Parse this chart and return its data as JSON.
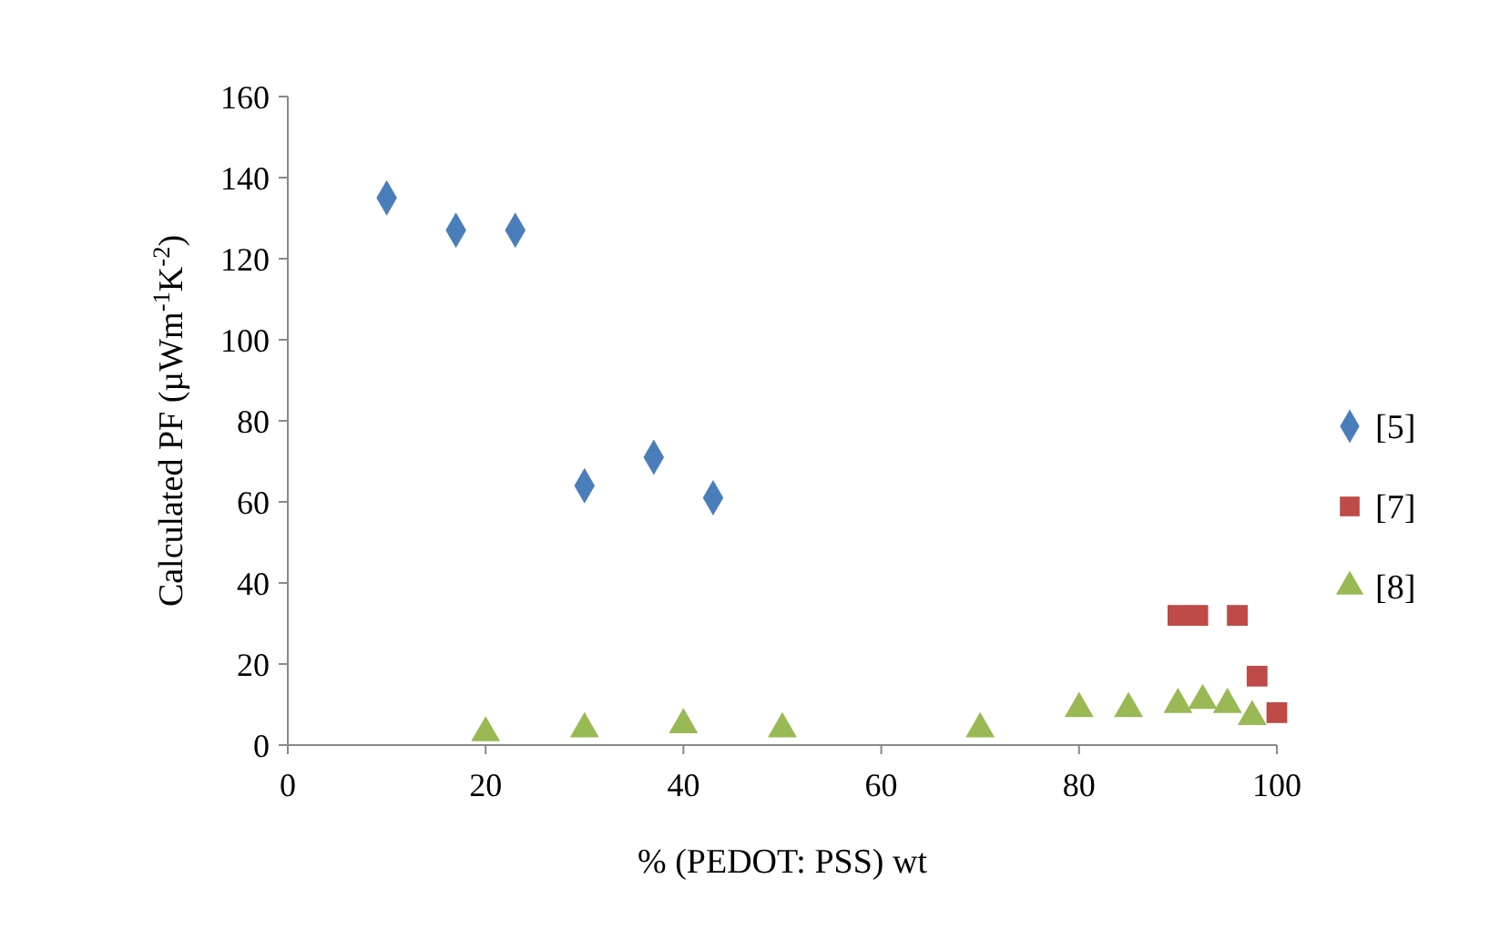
{
  "chart_data": {
    "type": "scatter",
    "xlabel": "% (PEDOT: PSS) wt",
    "ylabel": "Calculated PF (µWm$^{-1}$K$^{-2}$)",
    "xlim": [
      0,
      100
    ],
    "xticks": [
      0,
      20,
      40,
      60,
      80,
      100
    ],
    "ylim": [
      0,
      160
    ],
    "yticks": [
      0,
      20,
      40,
      60,
      80,
      100,
      120,
      140,
      160
    ],
    "grid": false,
    "legend": "right",
    "series": [
      {
        "name": "[5]",
        "color": "#4a7ebb",
        "marker": "diamond",
        "x": [
          10,
          17,
          23,
          30,
          37,
          43
        ],
        "values": [
          135,
          127,
          127,
          64,
          71,
          61
        ]
      },
      {
        "name": "[7]",
        "color": "#be4b48",
        "marker": "square",
        "x": [
          90,
          92,
          96,
          98,
          100
        ],
        "values": [
          32,
          32,
          32,
          17,
          8
        ]
      },
      {
        "name": "[8]",
        "color": "#98b954",
        "marker": "triangle",
        "x": [
          20,
          30,
          40,
          50,
          70,
          80,
          85,
          90,
          92.5,
          95,
          97.5
        ],
        "values": [
          3,
          4,
          5,
          4,
          4,
          9,
          9,
          10,
          11,
          10,
          7
        ]
      }
    ]
  }
}
